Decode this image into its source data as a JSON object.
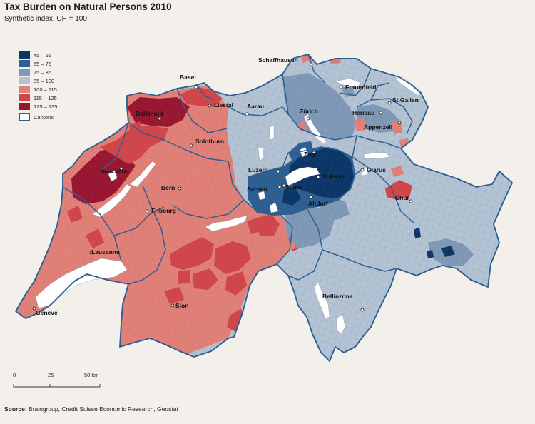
{
  "title": "Tax Burden on Natural Persons 2010",
  "subtitle": "Synthetic index, CH = 100",
  "legend": [
    {
      "label": "45 – 65",
      "color": "#0d3668"
    },
    {
      "label": "65 – 75",
      "color": "#2d5f93"
    },
    {
      "label": "75 – 85",
      "color": "#7f99b6"
    },
    {
      "label": "85 – 100",
      "color": "#b4c3d3"
    },
    {
      "label": "100 – 115",
      "color": "#e28077"
    },
    {
      "label": "115 – 125",
      "color": "#d2464a"
    },
    {
      "label": "125 – 135",
      "color": "#9a1630"
    },
    {
      "label": "Cantons",
      "color": "#ffffff",
      "border": "#2d5f93"
    }
  ],
  "cities": [
    {
      "name": "Basel"
    },
    {
      "name": "Schaffhausen"
    },
    {
      "name": "Liestal"
    },
    {
      "name": "Aarau"
    },
    {
      "name": "Zürich"
    },
    {
      "name": "Frauenfeld"
    },
    {
      "name": "St.Gallen"
    },
    {
      "name": "Herisau"
    },
    {
      "name": "Appenzell"
    },
    {
      "name": "Delémont"
    },
    {
      "name": "Solothurn"
    },
    {
      "name": "Zug"
    },
    {
      "name": "Luzern"
    },
    {
      "name": "Schwyz"
    },
    {
      "name": "Glarus"
    },
    {
      "name": "Neuchâtel"
    },
    {
      "name": "Sarnen"
    },
    {
      "name": "Stans"
    },
    {
      "name": "Bern"
    },
    {
      "name": "Altdorf"
    },
    {
      "name": "Chur"
    },
    {
      "name": "Fribourg"
    },
    {
      "name": "Lausanne"
    },
    {
      "name": "Sion"
    },
    {
      "name": "Bellinzona"
    },
    {
      "name": "Genève"
    }
  ],
  "scale": {
    "ticks": [
      "0",
      "25",
      "50 km"
    ]
  },
  "source": {
    "label": "Source:",
    "text": "Braingroup, Credit Suisse Economic Research, Geostat"
  }
}
